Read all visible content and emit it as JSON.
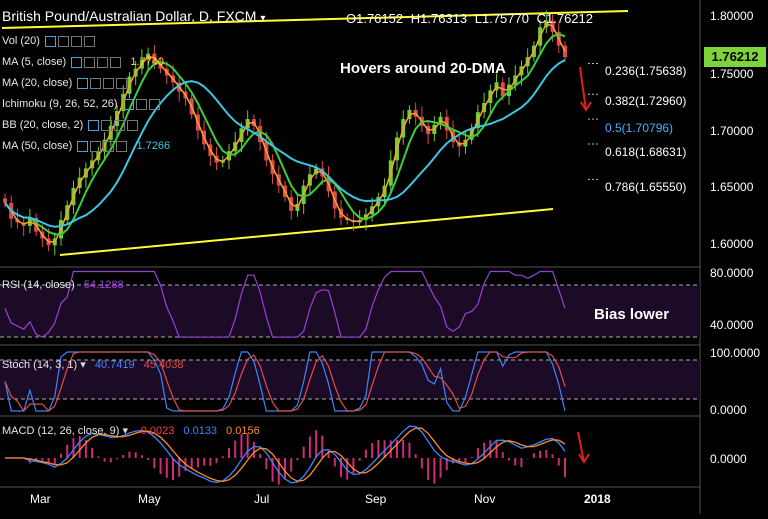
{
  "header": {
    "title": "British Pound/Australian Dollar, D, FXCM",
    "ohlc": {
      "open": "O1.76152",
      "high": "H1.76313",
      "low": "L1.75770",
      "close": "C1.76212"
    }
  },
  "last_price": "1.76212",
  "indicators": {
    "vol": "Vol (20)",
    "ma5": {
      "label": "MA (5, close)",
      "value": "1.7740"
    },
    "ma20": {
      "label": "MA (20, close)"
    },
    "ichimoku": {
      "label": "Ichimoku (9, 26, 52, 26)"
    },
    "bb": {
      "label": "BB (20, close, 2)"
    },
    "ma50": {
      "label": "MA (50, close)",
      "value": "1.7266"
    }
  },
  "annotations": {
    "main": "Hovers around 20-DMA",
    "rsi": "Bias lower"
  },
  "fib_levels": [
    "0.236(1.75638)",
    "0.382(1.72960)",
    "0.5(1.70796)",
    "0.618(1.68631)",
    "0.786(1.65550)"
  ],
  "rsi": {
    "label": "RSI (14, close)",
    "value": "54.1288"
  },
  "stoch": {
    "label": "Stoch (14, 3, 1)",
    "k": "40.7419",
    "d": "45.4038"
  },
  "macd": {
    "label": "MACD (12, 26, close, 9)",
    "hist": "-0.0023",
    "macd": "0.0133",
    "signal": "0.0156"
  },
  "colors": {
    "ma5": "#ff9f2d",
    "ma20": "#3ccf3c",
    "ma50": "#3cc6e0",
    "up": "#6fcf3a",
    "down": "#e04a4a",
    "trend": "#ffff33",
    "rsi": "#9b3fd6",
    "stoch_k": "#3a86ff",
    "stoch_d": "#e24a4a",
    "macd": "#3a86ff",
    "signal": "#ff8c2a",
    "panel": "#1c0b26",
    "arrow": "#e02020"
  },
  "chart_data": {
    "type": "candlestick",
    "title": "British Pound/Australian Dollar, D, FXCM",
    "x_ticks": [
      "Mar",
      "May",
      "Jul",
      "Sep",
      "Nov",
      "2018"
    ],
    "y_ticks": [
      "1.80000",
      "1.75000",
      "1.70000",
      "1.65000",
      "1.60000"
    ],
    "ylim": [
      1.58,
      1.81
    ],
    "series": [
      {
        "name": "Close",
        "values": [
          1.635,
          1.621,
          1.618,
          1.615,
          1.622,
          1.61,
          1.604,
          1.598,
          1.604,
          1.62,
          1.633,
          1.648,
          1.657,
          1.665,
          1.672,
          1.68,
          1.69,
          1.702,
          1.715,
          1.73,
          1.745,
          1.752,
          1.76,
          1.765,
          1.758,
          1.752,
          1.746,
          1.74,
          1.732,
          1.726,
          1.712,
          1.698,
          1.686,
          1.676,
          1.67,
          1.672,
          1.68,
          1.688,
          1.7,
          1.708,
          1.702,
          1.688,
          1.672,
          1.66,
          1.65,
          1.64,
          1.628,
          1.634,
          1.65,
          1.66,
          1.665,
          1.658,
          1.645,
          1.63,
          1.622,
          1.62,
          1.618,
          1.62,
          1.625,
          1.632,
          1.64,
          1.65,
          1.672,
          1.692,
          1.708,
          1.716,
          1.71,
          1.702,
          1.695,
          1.703,
          1.71,
          1.698,
          1.688,
          1.684,
          1.69,
          1.7,
          1.714,
          1.722,
          1.733,
          1.74,
          1.728,
          1.738,
          1.746,
          1.754,
          1.762,
          1.772,
          1.788,
          1.794,
          1.784,
          1.772,
          1.762
        ]
      }
    ],
    "ma5_last": 1.774,
    "ma50_last": 1.7266,
    "fib": [
      1.75638,
      1.7296,
      1.70796,
      1.68631,
      1.6555
    ],
    "rsi": {
      "ylim": [
        20,
        85
      ],
      "ticks": [
        "80.0000",
        "40.0000"
      ],
      "bands": [
        70,
        30
      ],
      "last": 54.1288
    },
    "stoch": {
      "ylim": [
        0,
        100
      ],
      "ticks": [
        "100.0000",
        "0.0000"
      ],
      "bands": [
        80,
        20
      ],
      "k_last": 40.7419,
      "d_last": 45.4038
    },
    "macd": {
      "ticks": [
        "0.0000"
      ],
      "hist_last": -0.0023,
      "macd_last": 0.0133,
      "signal_last": 0.0156
    }
  }
}
